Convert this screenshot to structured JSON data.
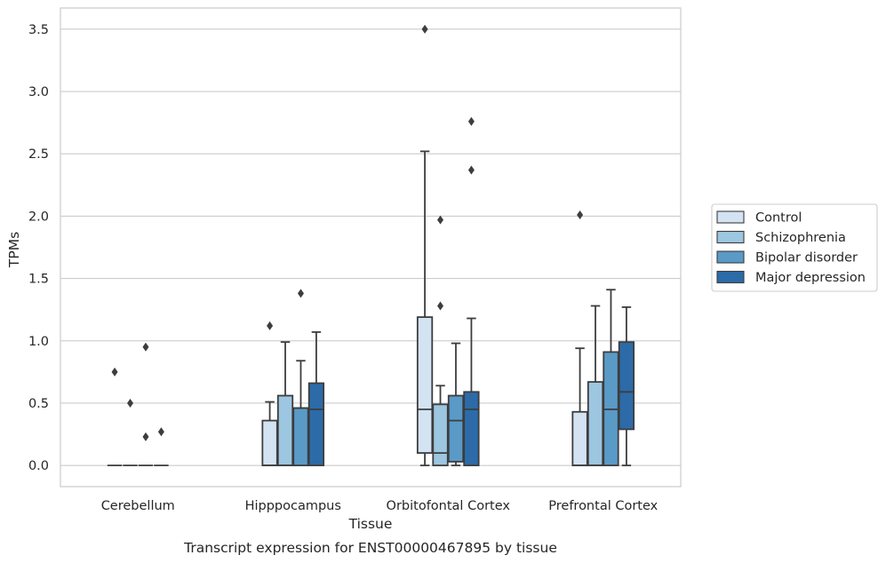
{
  "chart_data": {
    "type": "box",
    "title": "Transcript expression for ENST00000467895 by tissue",
    "xlabel": "Tissue",
    "ylabel": "TPMs",
    "ylim": [
      -0.17,
      3.67
    ],
    "yticks": [
      0.0,
      0.5,
      1.0,
      1.5,
      2.0,
      2.5,
      3.0,
      3.5
    ],
    "ytick_labels": [
      "0.0",
      "0.5",
      "1.0",
      "1.5",
      "2.0",
      "2.5",
      "3.0",
      "3.5"
    ],
    "grid": "horizontal",
    "legend_position": "right",
    "categories": [
      "Cerebellum",
      "Hipppocampus",
      "Orbitofontal Cortex",
      "Prefrontal Cortex"
    ],
    "series": [
      {
        "name": "Control",
        "color": "#d3e3f2",
        "boxes": [
          {
            "q1": 0.0,
            "median": 0.0,
            "q3": 0.0,
            "whisker_low": 0.0,
            "whisker_high": 0.0,
            "outliers": [
              0.75
            ]
          },
          {
            "q1": 0.0,
            "median": 0.0,
            "q3": 0.36,
            "whisker_low": 0.0,
            "whisker_high": 0.51,
            "outliers": [
              1.12
            ]
          },
          {
            "q1": 0.1,
            "median": 0.45,
            "q3": 1.19,
            "whisker_low": 0.0,
            "whisker_high": 2.52,
            "outliers": [
              3.5
            ]
          },
          {
            "q1": 0.0,
            "median": 0.0,
            "q3": 0.43,
            "whisker_low": 0.0,
            "whisker_high": 0.94,
            "outliers": [
              2.01
            ]
          }
        ]
      },
      {
        "name": "Schizophrenia",
        "color": "#9dc6e0",
        "boxes": [
          {
            "q1": 0.0,
            "median": 0.0,
            "q3": 0.0,
            "whisker_low": 0.0,
            "whisker_high": 0.0,
            "outliers": [
              0.5
            ]
          },
          {
            "q1": 0.0,
            "median": 0.0,
            "q3": 0.56,
            "whisker_low": 0.0,
            "whisker_high": 0.99,
            "outliers": []
          },
          {
            "q1": 0.0,
            "median": 0.1,
            "q3": 0.49,
            "whisker_low": 0.0,
            "whisker_high": 0.64,
            "outliers": [
              1.28,
              1.97
            ]
          },
          {
            "q1": 0.0,
            "median": 0.0,
            "q3": 0.67,
            "whisker_low": 0.0,
            "whisker_high": 1.28,
            "outliers": []
          }
        ]
      },
      {
        "name": "Bipolar disorder",
        "color": "#5a9ac7",
        "boxes": [
          {
            "q1": 0.0,
            "median": 0.0,
            "q3": 0.0,
            "whisker_low": 0.0,
            "whisker_high": 0.0,
            "outliers": [
              0.23,
              0.95
            ]
          },
          {
            "q1": 0.0,
            "median": 0.46,
            "q3": 0.46,
            "whisker_low": 0.0,
            "whisker_high": 0.84,
            "outliers": [
              1.38
            ]
          },
          {
            "q1": 0.03,
            "median": 0.36,
            "q3": 0.56,
            "whisker_low": 0.0,
            "whisker_high": 0.98,
            "outliers": []
          },
          {
            "q1": 0.0,
            "median": 0.45,
            "q3": 0.91,
            "whisker_low": 0.0,
            "whisker_high": 1.41,
            "outliers": []
          }
        ]
      },
      {
        "name": "Major depression",
        "color": "#2c6ba8",
        "boxes": [
          {
            "q1": 0.0,
            "median": 0.0,
            "q3": 0.0,
            "whisker_low": 0.0,
            "whisker_high": 0.0,
            "outliers": [
              0.27
            ]
          },
          {
            "q1": 0.0,
            "median": 0.45,
            "q3": 0.66,
            "whisker_low": 0.0,
            "whisker_high": 1.07,
            "outliers": []
          },
          {
            "q1": 0.0,
            "median": 0.45,
            "q3": 0.59,
            "whisker_low": 0.0,
            "whisker_high": 1.18,
            "outliers": [
              2.37,
              2.76
            ]
          },
          {
            "q1": 0.29,
            "median": 0.59,
            "q3": 0.99,
            "whisker_low": 0.0,
            "whisker_high": 1.27,
            "outliers": []
          }
        ]
      }
    ]
  }
}
